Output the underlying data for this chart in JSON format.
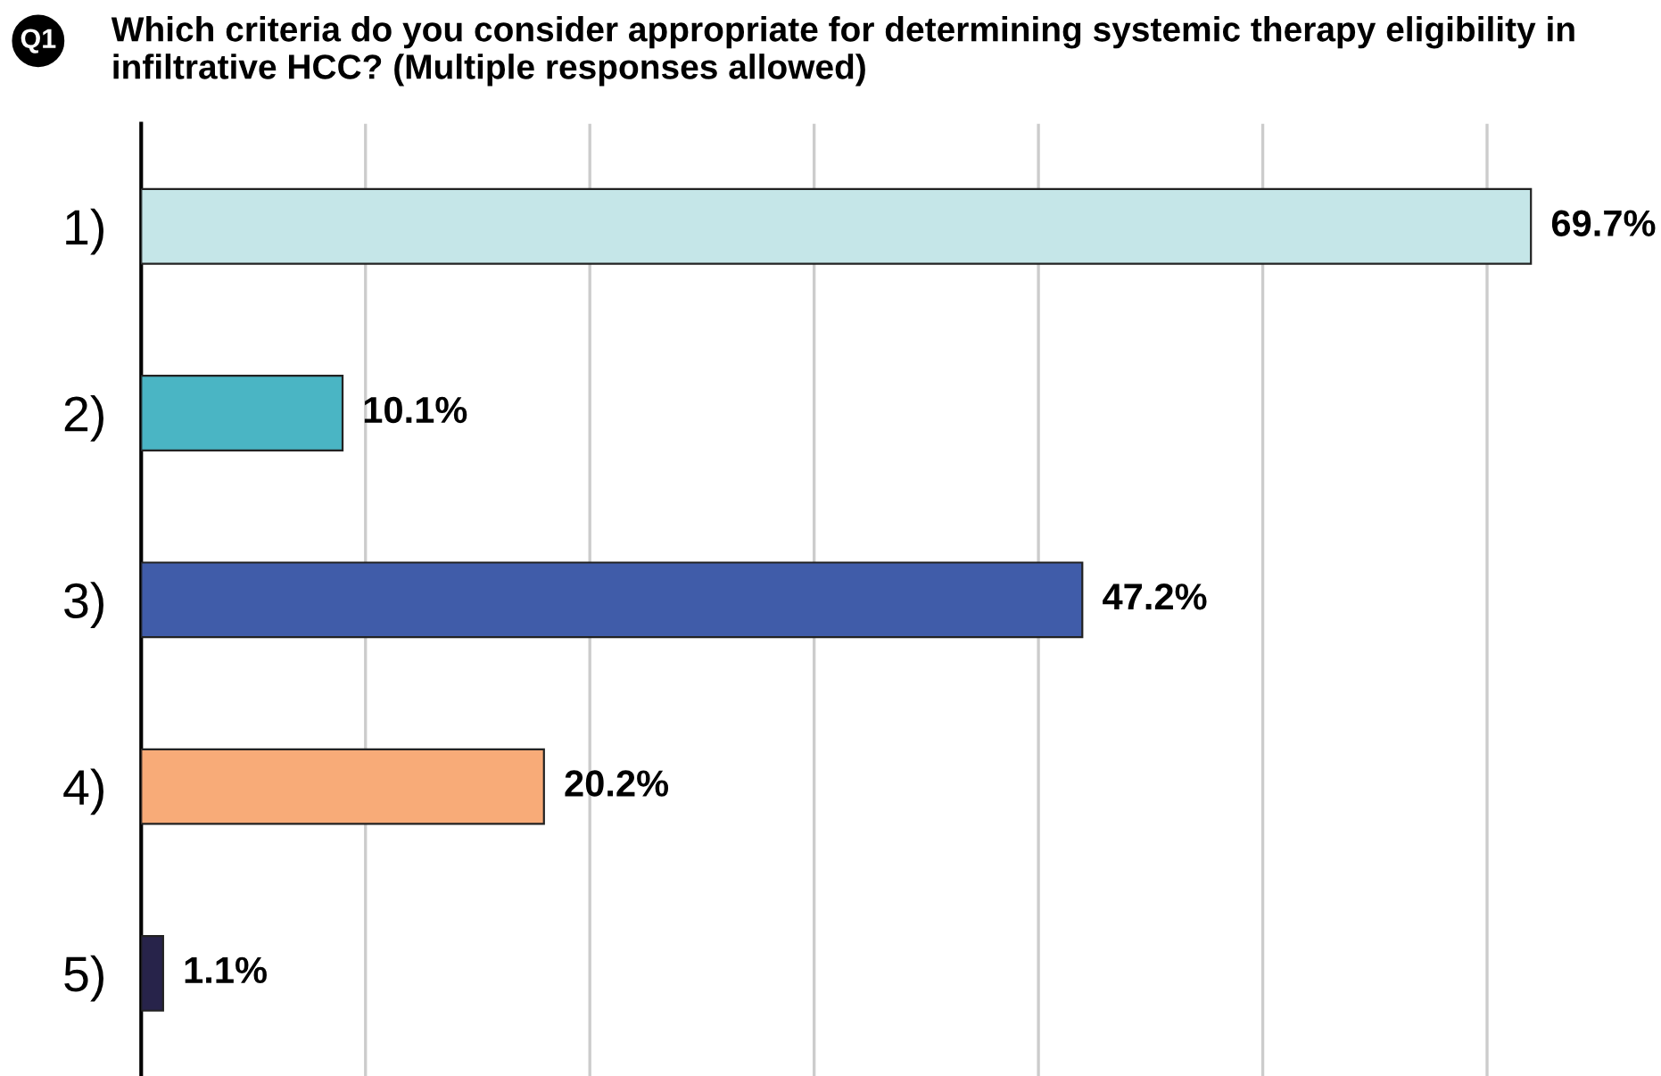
{
  "chart_data": {
    "type": "bar",
    "orientation": "horizontal",
    "title": "Which criteria do you consider appropriate for determining systemic therapy eligibility in infiltrative HCC? (Multiple responses allowed)",
    "annotations": [
      "Q1"
    ],
    "categories": [
      "1)",
      "2)",
      "3)",
      "4)",
      "5)"
    ],
    "values": [
      69.7,
      10.1,
      47.2,
      20.2,
      1.1
    ],
    "colors": [
      "#c5e6e8",
      "#4ab5c4",
      "#405ca9",
      "#f8ab78",
      "#27234a"
    ],
    "value_labels": [
      "69.7%",
      "10.1%",
      "47.2%",
      "20.2%",
      "1.1%"
    ],
    "xticks": [
      {
        "value": 11.25,
        "label": null
      },
      {
        "value": 22.5,
        "label": null
      },
      {
        "value": 33.75,
        "label": null
      },
      {
        "value": 45,
        "label": null
      },
      {
        "value": 56.25,
        "label": null
      },
      {
        "value": 67.5,
        "label": null
      }
    ],
    "grid": "x",
    "legend": false,
    "tick_labels": "y"
  }
}
